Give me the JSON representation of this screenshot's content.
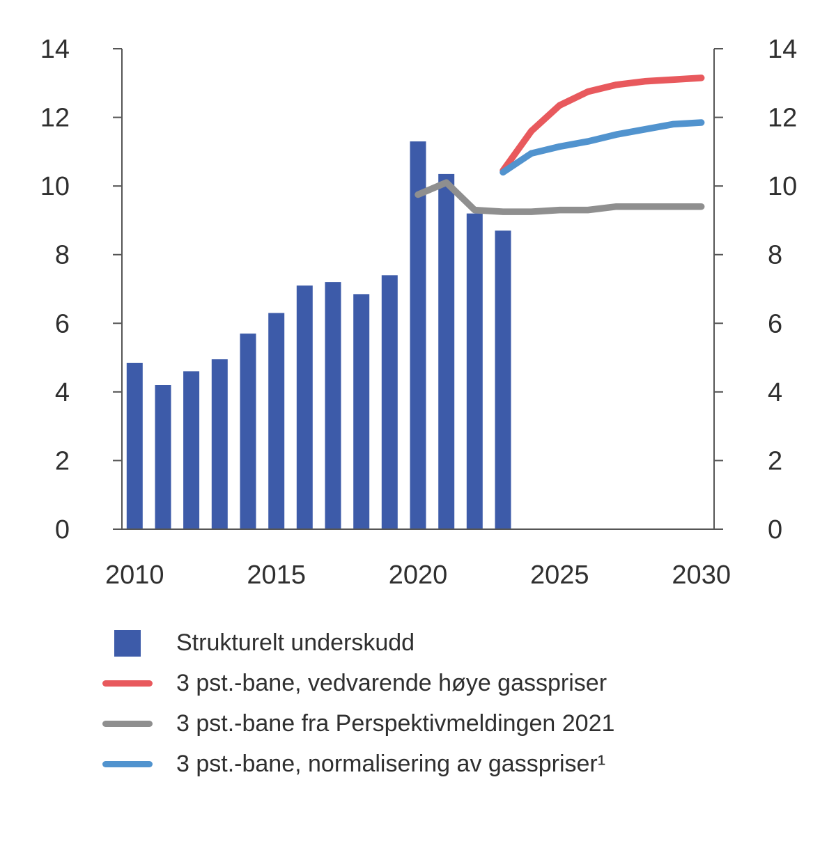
{
  "figure": {
    "background": "#ffffff",
    "text_color": "#2f2f2f"
  },
  "chart_data": {
    "type": "bar",
    "title": "",
    "xlabel": "",
    "ylabel": "",
    "ylim": [
      0,
      14
    ],
    "xlim": [
      2009.55,
      2030.45
    ],
    "yticks": [
      0,
      2,
      4,
      6,
      8,
      10,
      12,
      14
    ],
    "xticks": [
      2010,
      2015,
      2020,
      2025,
      2030
    ],
    "grid": false,
    "dual_y_axis": true,
    "axis_color": "#555555",
    "bar_series": {
      "name": "Strukturelt underskudd",
      "color": "#3d5ba9",
      "years": [
        2010,
        2011,
        2012,
        2013,
        2014,
        2015,
        2016,
        2017,
        2018,
        2019,
        2020,
        2021,
        2022,
        2023
      ],
      "values": [
        4.85,
        4.2,
        4.6,
        4.95,
        5.7,
        6.3,
        7.1,
        7.2,
        6.85,
        7.4,
        11.3,
        10.35,
        9.2,
        8.7
      ]
    },
    "line_series": [
      {
        "name": "3 pst.-bane, vedvarende høye gasspriser",
        "color": "#e8595d",
        "years": [
          2023,
          2024,
          2025,
          2026,
          2027,
          2028,
          2029,
          2030
        ],
        "values": [
          10.45,
          11.6,
          12.35,
          12.75,
          12.95,
          13.05,
          13.1,
          13.15
        ]
      },
      {
        "name": "3 pst.-bane fra Perspektivmeldingen 2021",
        "color": "#8f8f8f",
        "years": [
          2020,
          2021,
          2022,
          2023,
          2024,
          2025,
          2026,
          2027,
          2028,
          2029,
          2030
        ],
        "values": [
          9.75,
          10.1,
          9.3,
          9.25,
          9.25,
          9.3,
          9.3,
          9.4,
          9.4,
          9.4,
          9.4
        ]
      },
      {
        "name": "3 pst.-bane, normalisering av gasspriser¹",
        "color": "#5193ce",
        "years": [
          2023,
          2024,
          2025,
          2026,
          2027,
          2028,
          2029,
          2030
        ],
        "values": [
          10.4,
          10.95,
          11.15,
          11.3,
          11.5,
          11.65,
          11.8,
          11.85
        ]
      }
    ],
    "legend": [
      {
        "swatch": "square",
        "color": "#3d5ba9",
        "label": "Strukturelt underskudd"
      },
      {
        "swatch": "line",
        "color": "#e8595d",
        "label": "3 pst.-bane, vedvarende høye gasspriser"
      },
      {
        "swatch": "line",
        "color": "#8f8f8f",
        "label": "3 pst.-bane fra Perspektivmeldingen 2021"
      },
      {
        "swatch": "line",
        "color": "#5193ce",
        "label": "3 pst.-bane, normalisering av gasspriser¹"
      }
    ]
  }
}
